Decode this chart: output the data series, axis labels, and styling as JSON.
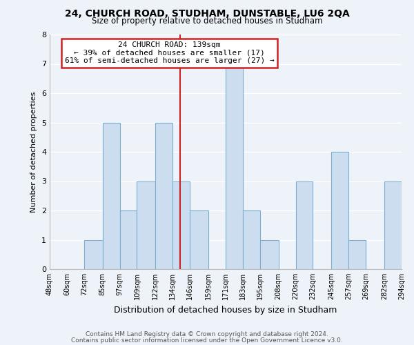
{
  "title": "24, CHURCH ROAD, STUDHAM, DUNSTABLE, LU6 2QA",
  "subtitle": "Size of property relative to detached houses in Studham",
  "xlabel": "Distribution of detached houses by size in Studham",
  "ylabel": "Number of detached properties",
  "bin_edges": [
    48,
    60,
    72,
    85,
    97,
    109,
    122,
    134,
    146,
    159,
    171,
    183,
    195,
    208,
    220,
    232,
    245,
    257,
    269,
    282,
    294
  ],
  "bar_heights": [
    0,
    0,
    1,
    5,
    2,
    3,
    5,
    3,
    2,
    0,
    7,
    2,
    1,
    0,
    3,
    0,
    4,
    1,
    0,
    3
  ],
  "bar_color": "#ccddf0",
  "bar_edge_color": "#7aadce",
  "property_line_x": 139,
  "annotation_title": "24 CHURCH ROAD: 139sqm",
  "annotation_line1": "← 39% of detached houses are smaller (17)",
  "annotation_line2": "61% of semi-detached houses are larger (27) →",
  "annotation_box_facecolor": "#ffffff",
  "annotation_box_edgecolor": "#cc2222",
  "ylim": [
    0,
    8
  ],
  "yticks": [
    0,
    1,
    2,
    3,
    4,
    5,
    6,
    7,
    8
  ],
  "tick_labels": [
    "48sqm",
    "60sqm",
    "72sqm",
    "85sqm",
    "97sqm",
    "109sqm",
    "122sqm",
    "134sqm",
    "146sqm",
    "159sqm",
    "171sqm",
    "183sqm",
    "195sqm",
    "208sqm",
    "220sqm",
    "232sqm",
    "245sqm",
    "257sqm",
    "269sqm",
    "282sqm",
    "294sqm"
  ],
  "footer_line1": "Contains HM Land Registry data © Crown copyright and database right 2024.",
  "footer_line2": "Contains public sector information licensed under the Open Government Licence v3.0.",
  "background_color": "#eef2f9",
  "grid_color": "#ffffff",
  "red_line_color": "#cc2222",
  "title_fontsize": 10,
  "subtitle_fontsize": 8.5,
  "xlabel_fontsize": 9,
  "ylabel_fontsize": 8,
  "tick_fontsize": 7,
  "footer_fontsize": 6.5,
  "annot_fontsize": 8
}
